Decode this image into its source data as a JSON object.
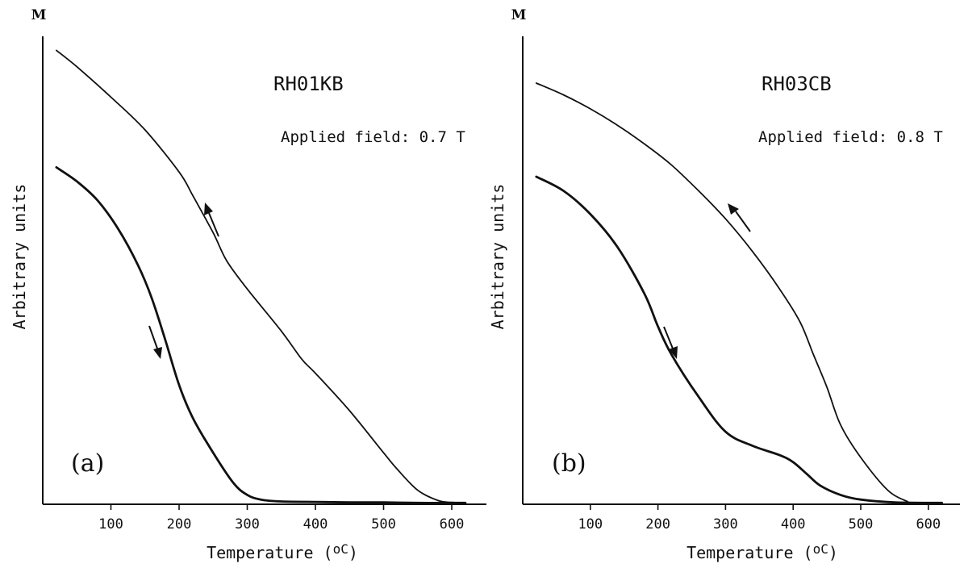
{
  "chart_data": [
    {
      "type": "line",
      "panel_label": "(a)",
      "sample": "RH01KB",
      "field": "Applied field: 0.7 T",
      "ylabel_top": "M",
      "ylabel": "Arbitrary units",
      "xlabel": "Temperature (°C)",
      "xlabel_base": "Temperature (",
      "xlabel_unit": "oC",
      "xlabel_close": ")",
      "xticks": [
        100,
        200,
        300,
        400,
        500,
        600
      ],
      "xlim": [
        0,
        650
      ],
      "ylim": [
        0,
        1
      ],
      "grid": false,
      "series": [
        {
          "direction": "heating",
          "x": [
            20,
            50,
            80,
            110,
            140,
            160,
            180,
            200,
            220,
            250,
            280,
            300,
            320,
            350,
            400,
            450,
            500,
            550,
            600,
            620
          ],
          "y": [
            0.72,
            0.69,
            0.65,
            0.59,
            0.51,
            0.44,
            0.35,
            0.255,
            0.185,
            0.11,
            0.045,
            0.02,
            0.01,
            0.006,
            0.005,
            0.004,
            0.004,
            0.003,
            0.003,
            0.003
          ]
        },
        {
          "direction": "cooling",
          "x": [
            620,
            600,
            580,
            550,
            520,
            500,
            450,
            400,
            380,
            350,
            300,
            270,
            250,
            220,
            200,
            150,
            100,
            50,
            20
          ],
          "y": [
            0.003,
            0.004,
            0.008,
            0.03,
            0.075,
            0.11,
            0.2,
            0.28,
            0.31,
            0.37,
            0.46,
            0.52,
            0.58,
            0.66,
            0.71,
            0.8,
            0.87,
            0.935,
            0.97
          ]
        }
      ]
    },
    {
      "type": "line",
      "panel_label": "(b)",
      "sample": "RH03CB",
      "field": "Applied field: 0.8 T",
      "ylabel_top": "M",
      "ylabel": "Arbitrary units",
      "xlabel": "Temperature (°C)",
      "xlabel_base": "Temperature (",
      "xlabel_unit": "oC",
      "xlabel_close": ")",
      "xticks": [
        100,
        200,
        300,
        400,
        500,
        600
      ],
      "xlim": [
        0,
        650
      ],
      "ylim": [
        0,
        1
      ],
      "grid": false,
      "series": [
        {
          "direction": "heating",
          "x": [
            20,
            60,
            100,
            140,
            180,
            200,
            220,
            260,
            300,
            340,
            380,
            400,
            420,
            440,
            470,
            500,
            550,
            620
          ],
          "y": [
            0.7,
            0.67,
            0.62,
            0.55,
            0.45,
            0.38,
            0.32,
            0.23,
            0.155,
            0.125,
            0.105,
            0.09,
            0.065,
            0.04,
            0.02,
            0.01,
            0.004,
            0.003
          ]
        },
        {
          "direction": "cooling",
          "x": [
            570,
            540,
            500,
            470,
            450,
            430,
            410,
            380,
            340,
            300,
            260,
            220,
            180,
            140,
            100,
            60,
            20
          ],
          "y": [
            0.005,
            0.03,
            0.1,
            0.17,
            0.25,
            0.32,
            0.39,
            0.46,
            0.54,
            0.61,
            0.67,
            0.725,
            0.77,
            0.81,
            0.845,
            0.875,
            0.9
          ]
        }
      ]
    }
  ]
}
